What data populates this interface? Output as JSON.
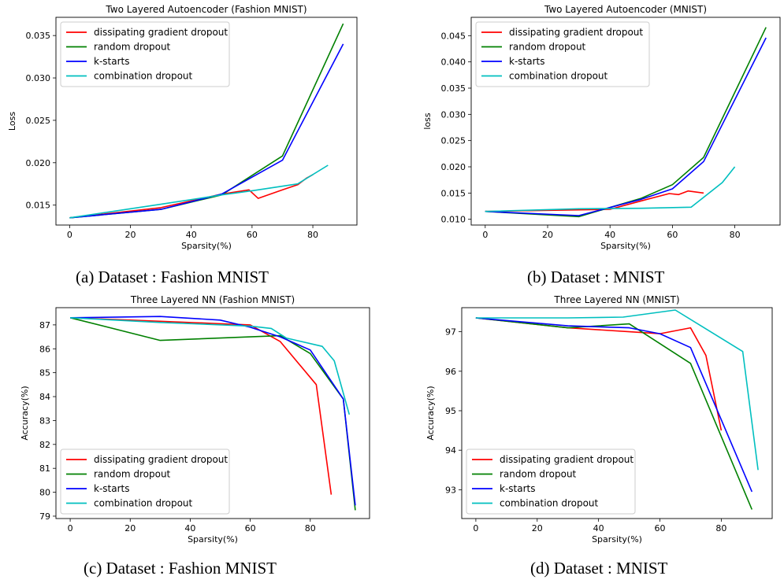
{
  "captions": [
    "(a) Dataset : Fashion MNIST",
    "(b) Dataset : MNIST",
    "(c) Dataset : Fashion MNIST",
    "(d) Dataset : MNIST"
  ],
  "series_colors": {
    "dissipating gradient dropout": "#ff0000",
    "random dropout": "#008000",
    "k-starts": "#0000ff",
    "combination dropout": "#00bfbf"
  },
  "chart_data": [
    {
      "type": "line",
      "title": "Two Layered Autoencoder (Fashion MNIST)",
      "xlabel": "Sparsity(%)",
      "ylabel": "Loss",
      "xlim": [
        -4.5,
        94.5
      ],
      "ylim": [
        0.01265,
        0.03715
      ],
      "xticks": [
        0,
        20,
        40,
        60,
        80
      ],
      "yticks": [
        0.015,
        0.02,
        0.025,
        0.03,
        0.035
      ],
      "ytick_labels": [
        "0.015",
        "0.020",
        "0.025",
        "0.030",
        "0.035"
      ],
      "legend": "top-left",
      "grid": false,
      "series": [
        {
          "name": "dissipating gradient dropout",
          "x": [
            0,
            30,
            50,
            59,
            62,
            70,
            75,
            78,
            80
          ],
          "y": [
            0.0135,
            0.0147,
            0.0163,
            0.0168,
            0.0158,
            0.0168,
            0.0174,
            0.0182,
            0.0186
          ]
        },
        {
          "name": "random dropout",
          "x": [
            0,
            30,
            50,
            70,
            90
          ],
          "y": [
            0.0135,
            0.0145,
            0.0162,
            0.0208,
            0.0364
          ]
        },
        {
          "name": "k-starts",
          "x": [
            0,
            30,
            50,
            70,
            90
          ],
          "y": [
            0.0135,
            0.0145,
            0.0163,
            0.0203,
            0.034
          ]
        },
        {
          "name": "combination dropout",
          "x": [
            0,
            30,
            50,
            60,
            75,
            85
          ],
          "y": [
            0.0135,
            0.0151,
            0.0162,
            0.0167,
            0.0175,
            0.0197
          ]
        }
      ]
    },
    {
      "type": "line",
      "title": "Two Layered Autoencoder (MNIST)",
      "xlabel": "Sparsity(%)",
      "ylabel": "loss",
      "xlim": [
        -4.5,
        94.5
      ],
      "ylim": [
        0.0089,
        0.0485
      ],
      "xticks": [
        0,
        20,
        40,
        60,
        80
      ],
      "yticks": [
        0.01,
        0.015,
        0.02,
        0.025,
        0.03,
        0.035,
        0.04,
        0.045
      ],
      "ytick_labels": [
        "0.010",
        "0.015",
        "0.020",
        "0.025",
        "0.030",
        "0.035",
        "0.040",
        "0.045"
      ],
      "legend": "top-left",
      "grid": false,
      "series": [
        {
          "name": "dissipating gradient dropout",
          "x": [
            0,
            30,
            40,
            50,
            59,
            62,
            65,
            70
          ],
          "y": [
            0.0115,
            0.0118,
            0.0119,
            0.0135,
            0.0149,
            0.0147,
            0.0154,
            0.015
          ]
        },
        {
          "name": "random dropout",
          "x": [
            0,
            30,
            50,
            60,
            70,
            90
          ],
          "y": [
            0.0115,
            0.0105,
            0.014,
            0.0166,
            0.0218,
            0.0466
          ]
        },
        {
          "name": "k-starts",
          "x": [
            0,
            30,
            50,
            60,
            70,
            90
          ],
          "y": [
            0.0115,
            0.0107,
            0.0138,
            0.0158,
            0.021,
            0.0446
          ]
        },
        {
          "name": "combination dropout",
          "x": [
            0,
            30,
            50,
            66,
            76,
            80
          ],
          "y": [
            0.0115,
            0.012,
            0.0121,
            0.0123,
            0.017,
            0.02
          ]
        }
      ]
    },
    {
      "type": "line",
      "title": "Three Layered NN (Fashion MNIST)",
      "xlabel": "Sparsity(%)",
      "ylabel": "Accuracy(%)",
      "xlim": [
        -4.75,
        99.75
      ],
      "ylim": [
        78.9,
        87.72
      ],
      "xticks": [
        0,
        20,
        40,
        60,
        80
      ],
      "yticks": [
        79,
        80,
        81,
        82,
        83,
        84,
        85,
        86,
        87
      ],
      "ytick_labels": [
        "79",
        "80",
        "81",
        "82",
        "83",
        "84",
        "85",
        "86",
        "87"
      ],
      "legend": "bottom-left",
      "grid": false,
      "series": [
        {
          "name": "dissipating gradient dropout",
          "x": [
            0,
            30,
            50,
            60,
            70,
            82,
            87
          ],
          "y": [
            87.3,
            87.15,
            87.05,
            87.0,
            86.3,
            84.5,
            79.9
          ]
        },
        {
          "name": "random dropout",
          "x": [
            0,
            30,
            50,
            70,
            80,
            91,
            95
          ],
          "y": [
            87.3,
            86.35,
            86.45,
            86.55,
            85.8,
            83.9,
            79.25
          ]
        },
        {
          "name": "k-starts",
          "x": [
            0,
            30,
            50,
            60,
            70,
            80,
            91,
            95
          ],
          "y": [
            87.3,
            87.35,
            87.2,
            86.9,
            86.5,
            85.95,
            83.9,
            79.45
          ]
        },
        {
          "name": "combination dropout",
          "x": [
            0,
            30,
            60,
            67,
            72,
            84,
            88,
            93
          ],
          "y": [
            87.3,
            87.1,
            86.95,
            86.85,
            86.45,
            86.1,
            85.5,
            83.25
          ]
        }
      ]
    },
    {
      "type": "line",
      "title": "Three Layered NN (MNIST)",
      "xlabel": "Sparsity(%)",
      "ylabel": "Accuracy(%)",
      "xlim": [
        -4.6,
        96.6
      ],
      "ylim": [
        92.27,
        97.61
      ],
      "xticks": [
        0,
        20,
        40,
        60,
        80
      ],
      "yticks": [
        93,
        94,
        95,
        96,
        97
      ],
      "ytick_labels": [
        "93",
        "94",
        "95",
        "96",
        "97"
      ],
      "legend": "bottom-left",
      "grid": false,
      "series": [
        {
          "name": "dissipating gradient dropout",
          "x": [
            0,
            30,
            50,
            60,
            70,
            75,
            80
          ],
          "y": [
            97.35,
            97.1,
            97.0,
            96.95,
            97.1,
            96.4,
            94.5
          ]
        },
        {
          "name": "random dropout",
          "x": [
            0,
            30,
            50,
            70,
            90
          ],
          "y": [
            97.35,
            97.1,
            97.2,
            96.2,
            92.5
          ]
        },
        {
          "name": "k-starts",
          "x": [
            0,
            30,
            50,
            60,
            70,
            90
          ],
          "y": [
            97.35,
            97.15,
            97.1,
            96.95,
            96.6,
            92.95
          ]
        },
        {
          "name": "combination dropout",
          "x": [
            0,
            30,
            48,
            65,
            87,
            92
          ],
          "y": [
            97.35,
            97.35,
            97.37,
            97.55,
            96.5,
            93.5
          ]
        }
      ]
    }
  ]
}
